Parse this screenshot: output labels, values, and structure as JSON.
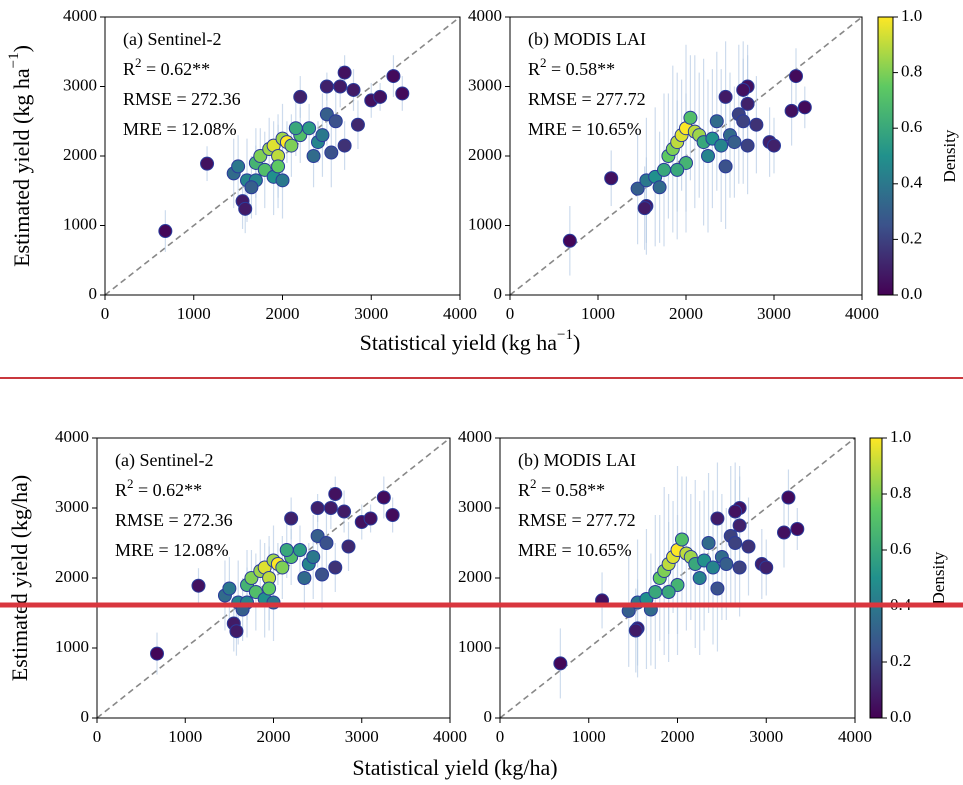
{
  "chart_data": [
    {
      "type": "scatter",
      "xlim": [
        0,
        4000
      ],
      "ylim": [
        0,
        4000
      ],
      "xticks": [
        0,
        1000,
        2000,
        3000,
        4000
      ],
      "yticks": [
        0,
        1000,
        2000,
        3000,
        4000
      ],
      "one_to_one_line": true,
      "annotation": {
        "label": "(a) Sentinel-2",
        "r2": {
          "base": "R",
          "sup": "2",
          "rest": " = 0.62**"
        },
        "rmse": "RMSE = 272.36",
        "mre": "MRE = 12.08%"
      },
      "x": [
        680,
        1150,
        1550,
        1580,
        1450,
        1500,
        1600,
        1700,
        1750,
        1800,
        1850,
        1900,
        1950,
        2000,
        2050,
        2100,
        1900,
        1700,
        2200,
        2300,
        2400,
        2500,
        2600,
        2450,
        2700,
        2200,
        2700,
        2650,
        2500,
        2850,
        3000,
        3100,
        3250,
        3350,
        2800,
        2350,
        2550,
        1950,
        2150,
        2000,
        1650
      ],
      "y": [
        920,
        1890,
        1350,
        1240,
        1750,
        1850,
        1650,
        1900,
        2000,
        1800,
        2100,
        2150,
        2000,
        2250,
        2200,
        2150,
        1700,
        1650,
        2300,
        2400,
        2200,
        2600,
        2500,
        2300,
        2150,
        2850,
        3200,
        3000,
        3000,
        2450,
        2800,
        2850,
        3150,
        2900,
        2950,
        2000,
        2050,
        1850,
        2400,
        1650,
        1550
      ],
      "density": [
        0.02,
        0.05,
        0.08,
        0.08,
        0.35,
        0.4,
        0.45,
        0.65,
        0.8,
        0.7,
        0.85,
        0.95,
        0.9,
        0.85,
        1.0,
        0.8,
        0.5,
        0.45,
        0.7,
        0.55,
        0.45,
        0.3,
        0.25,
        0.4,
        0.15,
        0.1,
        0.05,
        0.08,
        0.1,
        0.12,
        0.05,
        0.05,
        0.03,
        0.03,
        0.08,
        0.35,
        0.25,
        0.75,
        0.6,
        0.4,
        0.3
      ],
      "yerr": [
        300,
        250,
        400,
        350,
        500,
        450,
        600,
        500,
        400,
        550,
        450,
        350,
        600,
        500,
        300,
        450,
        550,
        500,
        400,
        350,
        300,
        450,
        500,
        600,
        350,
        300,
        250,
        300,
        200,
        350,
        250,
        200,
        300,
        250,
        300,
        450,
        500,
        600,
        400,
        550,
        450
      ]
    },
    {
      "type": "scatter",
      "xlim": [
        0,
        4000
      ],
      "ylim": [
        0,
        4000
      ],
      "xticks": [
        0,
        1000,
        2000,
        3000,
        4000
      ],
      "yticks": [
        0,
        1000,
        2000,
        3000,
        4000
      ],
      "one_to_one_line": true,
      "annotation": {
        "label": "(b) MODIS LAI",
        "r2": {
          "base": "R",
          "sup": "2",
          "rest": " = 0.58**"
        },
        "rmse": "RMSE = 277.72",
        "mre": "MRE = 10.65%"
      },
      "x": [
        680,
        1150,
        1550,
        1530,
        1450,
        1550,
        1650,
        1750,
        1800,
        1850,
        1900,
        1950,
        2000,
        2100,
        2150,
        2000,
        2200,
        2300,
        2400,
        2500,
        2600,
        2550,
        2700,
        2650,
        2700,
        2650,
        2450,
        2450,
        2800,
        2950,
        3000,
        3200,
        3250,
        3350,
        2700,
        1900,
        2250,
        2050,
        2350,
        1700
      ],
      "y": [
        780,
        1680,
        1280,
        1250,
        1530,
        1650,
        1700,
        1800,
        2000,
        2100,
        2200,
        2300,
        2400,
        2350,
        2300,
        1900,
        2200,
        2250,
        2150,
        2300,
        2600,
        2200,
        2150,
        2500,
        3000,
        2950,
        2850,
        1850,
        2450,
        2200,
        2150,
        2650,
        3150,
        2700,
        2750,
        1800,
        2000,
        2550,
        2500,
        1550
      ],
      "density": [
        0.02,
        0.05,
        0.08,
        0.08,
        0.3,
        0.4,
        0.5,
        0.6,
        0.75,
        0.8,
        0.9,
        0.95,
        1.0,
        0.9,
        0.85,
        0.65,
        0.6,
        0.5,
        0.45,
        0.35,
        0.2,
        0.3,
        0.2,
        0.2,
        0.05,
        0.05,
        0.08,
        0.25,
        0.15,
        0.1,
        0.1,
        0.05,
        0.03,
        0.03,
        0.1,
        0.6,
        0.45,
        0.7,
        0.35,
        0.35
      ],
      "yerr": [
        500,
        400,
        700,
        600,
        800,
        900,
        1000,
        1100,
        900,
        1200,
        1000,
        800,
        1200,
        1100,
        900,
        1000,
        1200,
        1000,
        1100,
        900,
        1000,
        800,
        700,
        900,
        600,
        700,
        800,
        900,
        700,
        500,
        400,
        500,
        400,
        300,
        700,
        1000,
        1100,
        900,
        1000,
        800
      ],
      "colorbar": {
        "label": "Density",
        "lim": [
          0,
          1
        ],
        "ticks": [
          {
            "value": 0,
            "label": "0.0"
          },
          {
            "value": 0.2,
            "label": "0.2"
          },
          {
            "value": 0.4,
            "label": "0.4"
          },
          {
            "value": 0.6,
            "label": "0.6"
          },
          {
            "value": 0.8,
            "label": "0.8"
          },
          {
            "value": 1,
            "label": "1.0"
          }
        ]
      }
    }
  ],
  "figures": [
    {
      "xlabel": {
        "base": "Statistical yield (kg ha",
        "sup": "−1",
        "end": ")"
      },
      "ylabel": {
        "base": "Estimated yield (kg ha",
        "sup": "−1",
        "end": ")"
      }
    },
    {
      "xlabel": {
        "base": "Statistical yield (kg/ha)"
      },
      "ylabel": {
        "base": "Estimated yield (kg/ha)"
      }
    }
  ]
}
